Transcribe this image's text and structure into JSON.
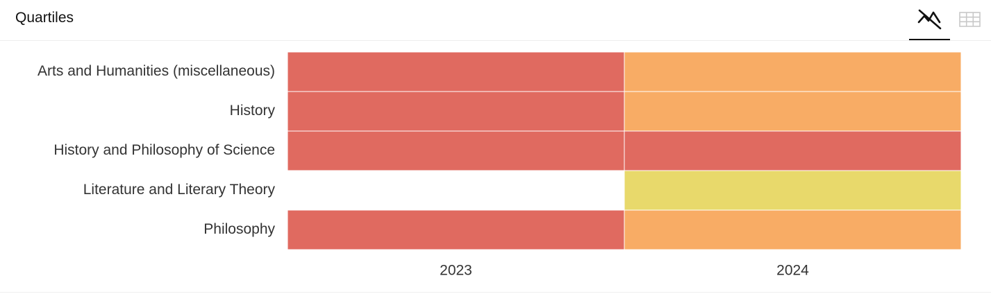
{
  "header": {
    "title": "Quartiles",
    "chart_view_icon": "chart-view-icon",
    "table_view_icon": "table-view-icon",
    "active_view": "chart"
  },
  "colors": {
    "Q1": "#e8d96b",
    "Q2": "#f8ac65",
    "Q3": "#e06a60",
    "text": "#333333"
  },
  "chart_data": {
    "type": "heatmap",
    "title": "Quartiles",
    "x": [
      "2023",
      "2024"
    ],
    "categories": [
      "Arts and Humanities (miscellaneous)",
      "History",
      "History and Philosophy of Science",
      "Literature and Literary Theory",
      "Philosophy"
    ],
    "values": [
      [
        "Q3",
        "Q2"
      ],
      [
        "Q3",
        "Q2"
      ],
      [
        "Q3",
        "Q3"
      ],
      [
        null,
        "Q1"
      ],
      [
        "Q3",
        "Q2"
      ]
    ],
    "legend": "none",
    "grid": false
  }
}
